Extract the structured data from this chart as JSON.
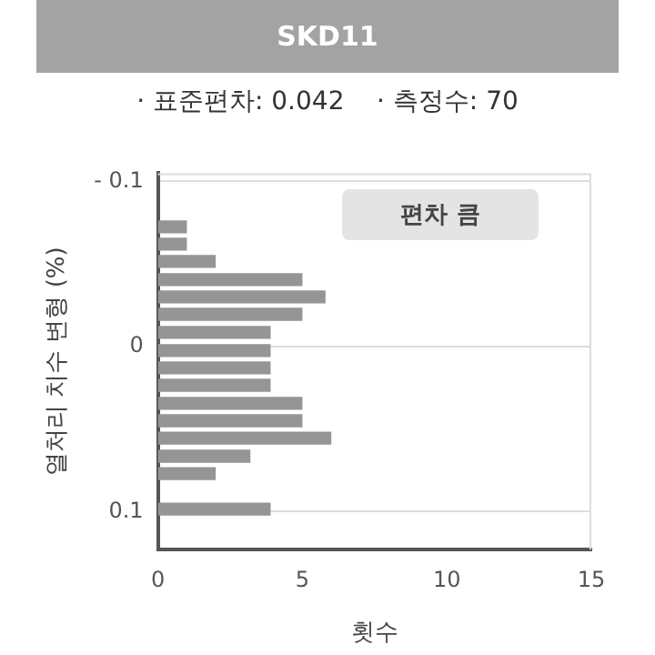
{
  "chart_data": {
    "type": "histogram",
    "orientation": "horizontal",
    "title": "SKD11",
    "subtitle": "· 표준편차: 0.042    · 측정수: 70",
    "xlabel": "횟수",
    "ylabel": "열처리 치수 변형 (%)",
    "bins": [
      -0.078,
      -0.067,
      -0.057,
      -0.046,
      -0.035,
      -0.025,
      -0.014,
      -0.003,
      0.008,
      0.018,
      0.029,
      0.04,
      0.05,
      0.061,
      0.072,
      0.082,
      0.093,
      0.104
    ],
    "values": [
      1,
      1,
      2,
      5,
      5.8,
      5,
      3.9,
      3.9,
      3.9,
      3.9,
      5,
      5,
      6,
      3.2,
      2,
      0,
      3.9
    ],
    "color": "#959595",
    "xlim": [
      0,
      15
    ],
    "xticks": [
      0,
      5,
      10,
      15
    ],
    "ylim": [
      0.123,
      -0.105
    ],
    "yticks": [
      {
        "value": -0.1,
        "label": "- 0.1"
      },
      0,
      0.1
    ],
    "grid": "y",
    "annotations": [
      "편차 큼"
    ]
  }
}
